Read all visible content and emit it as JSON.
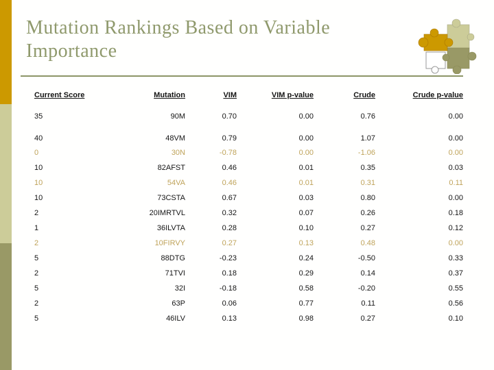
{
  "slide": {
    "title": "Mutation Rankings Based on Variable Importance",
    "colors": {
      "strip_gold": "#CC9900",
      "strip_khaki": "#CCCC99",
      "strip_olive": "#999966",
      "title_text": "#8F996C",
      "title_rule": "#8C9566",
      "body_text": "#141414",
      "highlight_row_text": "#BFA35A",
      "background": "#FFFFFE"
    },
    "icons": {
      "decoration": "puzzle-pieces-graphic"
    }
  },
  "table": {
    "headers": [
      "Current Score",
      "Mutation",
      "VIM",
      "VIM p-value",
      "Crude",
      "Crude p-value"
    ],
    "rows": [
      {
        "values": [
          "35",
          "90M",
          "0.70",
          "0.00",
          "0.76",
          "0.00"
        ],
        "highlight": false
      },
      {
        "values": [
          "40",
          "48VM",
          "0.79",
          "0.00",
          "1.07",
          "0.00"
        ],
        "highlight": false
      },
      {
        "values": [
          "0",
          "30N",
          "-0.78",
          "0.00",
          "-1.06",
          "0.00"
        ],
        "highlight": true
      },
      {
        "values": [
          "10",
          "82AFST",
          "0.46",
          "0.01",
          "0.35",
          "0.03"
        ],
        "highlight": false
      },
      {
        "values": [
          "10",
          "54VA",
          "0.46",
          "0.01",
          "0.31",
          "0.11"
        ],
        "highlight": true
      },
      {
        "values": [
          "10",
          "73CSTA",
          "0.67",
          "0.03",
          "0.80",
          "0.00"
        ],
        "highlight": false
      },
      {
        "values": [
          "2",
          "20IMRTVL",
          "0.32",
          "0.07",
          "0.26",
          "0.18"
        ],
        "highlight": false
      },
      {
        "values": [
          "1",
          "36ILVTA",
          "0.28",
          "0.10",
          "0.27",
          "0.12"
        ],
        "highlight": false
      },
      {
        "values": [
          "2",
          "10FIRVY",
          "0.27",
          "0.13",
          "0.48",
          "0.00"
        ],
        "highlight": true
      },
      {
        "values": [
          "5",
          "88DTG",
          "-0.23",
          "0.24",
          "-0.50",
          "0.33"
        ],
        "highlight": false
      },
      {
        "values": [
          "2",
          "71TVI",
          "0.18",
          "0.29",
          "0.14",
          "0.37"
        ],
        "highlight": false
      },
      {
        "values": [
          "5",
          "32I",
          "-0.18",
          "0.58",
          "-0.20",
          "0.55"
        ],
        "highlight": false
      },
      {
        "values": [
          "2",
          "63P",
          "0.06",
          "0.77",
          "0.11",
          "0.56"
        ],
        "highlight": false
      },
      {
        "values": [
          "5",
          "46ILV",
          "0.13",
          "0.98",
          "0.27",
          "0.10"
        ],
        "highlight": false
      }
    ]
  }
}
